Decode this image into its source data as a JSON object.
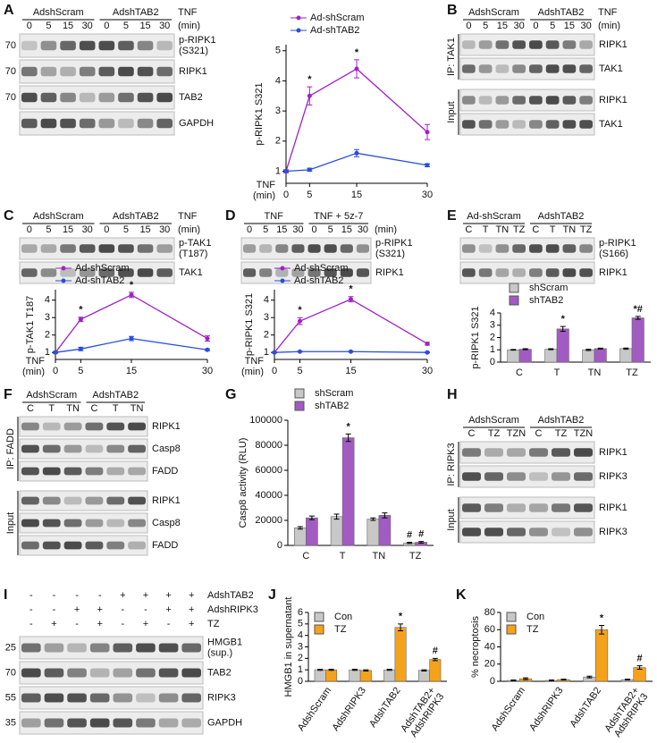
{
  "panel_labels": [
    "A",
    "B",
    "C",
    "D",
    "E",
    "F",
    "G",
    "H",
    "I",
    "J",
    "K"
  ],
  "blots": [
    {
      "groups": [
        {
          "name": "AdshScram",
          "lanes": [
            "0",
            "5",
            "15",
            "30"
          ]
        },
        {
          "name": "AdshTAB2",
          "lanes": [
            "0",
            "5",
            "15",
            "30"
          ]
        }
      ],
      "condition": [
        "TNF",
        "(min)"
      ],
      "sections": [
        {
          "rows": [
            {
              "mw": "70",
              "label": [
                "p-RIPK1",
                "(S321)"
              ]
            },
            {
              "mw": "70",
              "label": "RIPK1"
            },
            {
              "mw": "70",
              "label": "TAB2"
            },
            {
              "label": "GAPDH"
            }
          ]
        }
      ]
    },
    {
      "groups": [
        {
          "name": "AdshScram",
          "lanes": [
            "0",
            "5",
            "15",
            "30"
          ]
        },
        {
          "name": "AdshTAB2",
          "lanes": [
            "0",
            "5",
            "15",
            "30"
          ]
        }
      ],
      "condition": [
        "TNF",
        "(min)"
      ],
      "sections": [
        {
          "label": "IP: TAK1",
          "rows": [
            {
              "label": "RIPK1"
            },
            {
              "label": "TAK1"
            }
          ]
        },
        {
          "label": "Input",
          "rows": [
            {
              "label": "RIPK1"
            },
            {
              "label": "TAK1"
            }
          ]
        }
      ]
    },
    {
      "groups": [
        {
          "name": "AdshScram",
          "lanes": [
            "0",
            "5",
            "15",
            "30"
          ]
        },
        {
          "name": "AdshTAB2",
          "lanes": [
            "0",
            "5",
            "15",
            "30"
          ]
        }
      ],
      "condition": [
        "TNF",
        "(min)"
      ],
      "sections": [
        {
          "rows": [
            {
              "label": [
                "p-TAK1",
                "(T187)"
              ]
            },
            {
              "label": "TAK1"
            }
          ]
        }
      ]
    },
    {
      "groups": [
        {
          "name": "TNF",
          "lanes": [
            "0",
            "5",
            "15",
            "30"
          ]
        },
        {
          "name": "TNF + 5z-7",
          "lanes": [
            "0",
            "5",
            "15",
            "30"
          ]
        }
      ],
      "condition": [
        "(min)"
      ],
      "sections": [
        {
          "rows": [
            {
              "label": [
                "p-RIPK1",
                "(S321)"
              ]
            },
            {
              "label": "RIPK1"
            }
          ]
        }
      ]
    },
    {
      "groups": [
        {
          "name": "Ad-shScram",
          "lanes": [
            "C",
            "T",
            "TN",
            "TZ"
          ]
        },
        {
          "name": "AdshTAB2",
          "lanes": [
            "C",
            "T",
            "TN",
            "TZ"
          ]
        }
      ],
      "sections": [
        {
          "rows": [
            {
              "label": [
                "p-RIPK1",
                "(S166)"
              ]
            },
            {
              "label": "RIPK1"
            }
          ]
        }
      ]
    },
    {
      "groups": [
        {
          "name": "AdshScram",
          "lanes": [
            "C",
            "T",
            "TN"
          ]
        },
        {
          "name": "AdshTAB2",
          "lanes": [
            "C",
            "T",
            "TN"
          ]
        }
      ],
      "sections": [
        {
          "label": "IP: FADD",
          "rows": [
            {
              "label": "RIPK1"
            },
            {
              "label": "Casp8"
            },
            {
              "label": "FADD"
            }
          ]
        },
        {
          "label": "Input",
          "rows": [
            {
              "label": "RIPK1"
            },
            {
              "label": "Casp8"
            },
            {
              "label": "FADD"
            }
          ]
        }
      ]
    },
    {
      "groups": [
        {
          "name": "AdshScram",
          "lanes": [
            "C",
            "TZ",
            "TZN"
          ]
        },
        {
          "name": "AdshTAB2",
          "lanes": [
            "C",
            "TZ",
            "TZN"
          ]
        }
      ],
      "sections": [
        {
          "label": "IP: RIPK3",
          "rows": [
            {
              "label": "RIPK1"
            },
            {
              "label": "RIPK3"
            }
          ]
        },
        {
          "label": "Input",
          "rows": [
            {
              "label": "RIPK1"
            },
            {
              "label": "RIPK3"
            }
          ]
        }
      ]
    },
    {
      "conditions": [
        {
          "name": "AdshTAB2",
          "lanes": [
            "-",
            "-",
            "-",
            "-",
            "+",
            "+",
            "+",
            "+"
          ]
        },
        {
          "name": "AdshRIPK3",
          "lanes": [
            "-",
            "-",
            "+",
            "+",
            "-",
            "-",
            "+",
            "+"
          ]
        },
        {
          "name": "TZ",
          "lanes": [
            "-",
            "+",
            "-",
            "+",
            "-",
            "+",
            "-",
            "+"
          ]
        }
      ],
      "sections": [
        {
          "rows": [
            {
              "mw": "25",
              "label": [
                "HMGB1",
                "(sup.)"
              ]
            },
            {
              "mw": "70",
              "label": "TAB2"
            },
            {
              "mw": "55",
              "label": "RIPK3"
            },
            {
              "mw": "35",
              "label": "GAPDH"
            }
          ]
        }
      ]
    }
  ],
  "chart_data": [
    {
      "type": "line",
      "xlabel": [
        "TNF",
        "(min)"
      ],
      "ylabel": "p-RIPK1 S321",
      "x": [
        0,
        5,
        15,
        30
      ],
      "xlim": [
        0,
        30
      ],
      "xticks": [
        0,
        5,
        15,
        30
      ],
      "ylim": [
        0.6,
        5.2
      ],
      "yticks": [
        1,
        2,
        3,
        4,
        5
      ],
      "series": [
        {
          "name": "Ad-shScram",
          "color": "#a020c8",
          "values": [
            1,
            3.5,
            4.4,
            2.3
          ],
          "errors": [
            0.05,
            0.3,
            0.3,
            0.25
          ],
          "marks": [
            null,
            "*",
            "*",
            null
          ]
        },
        {
          "name": "Ad-shTAB2",
          "color": "#2a4de0",
          "values": [
            1,
            1.05,
            1.6,
            1.2
          ],
          "errors": [
            0.03,
            0.05,
            0.12,
            0.05
          ]
        }
      ]
    },
    {
      "type": "line",
      "xlabel": [
        "TNF",
        "(min)"
      ],
      "ylabel": "p-TAK1 T187",
      "x": [
        0,
        5,
        15,
        30
      ],
      "xlim": [
        0,
        30
      ],
      "xticks": [
        0,
        5,
        15,
        30
      ],
      "ylim": [
        0.6,
        4.6
      ],
      "yticks": [
        1,
        2,
        3,
        4
      ],
      "series": [
        {
          "name": "Ad-shScram",
          "color": "#a020c8",
          "values": [
            1,
            2.9,
            4.3,
            1.8
          ],
          "errors": [
            0.05,
            0.12,
            0.15,
            0.15
          ],
          "marks": [
            null,
            "*",
            "*",
            null
          ]
        },
        {
          "name": "Ad-shTAB2",
          "color": "#2a4de0",
          "values": [
            1,
            1.2,
            1.8,
            1.15
          ],
          "errors": [
            0.05,
            0.1,
            0.12,
            0.05
          ]
        }
      ]
    },
    {
      "type": "line",
      "xlabel": [
        "TNF",
        "(min)"
      ],
      "ylabel": "p-RIPK1 S321",
      "x": [
        0,
        5,
        15,
        30
      ],
      "xlim": [
        0,
        30
      ],
      "xticks": [
        0,
        5,
        15,
        30
      ],
      "ylim": [
        0.6,
        4.6
      ],
      "yticks": [
        1,
        2,
        3,
        4
      ],
      "series": [
        {
          "name": "Ad-shScram",
          "color": "#a020c8",
          "values": [
            1,
            2.8,
            4.05,
            1.5
          ],
          "errors": [
            0.03,
            0.2,
            0.15,
            0.08
          ],
          "marks": [
            null,
            "*",
            "*",
            null
          ]
        },
        {
          "name": "Ad-shTAB2",
          "color": "#2a4de0",
          "values": [
            1,
            1.05,
            1.05,
            1
          ],
          "errors": [
            0.02,
            0.02,
            0.02,
            0.02
          ]
        }
      ]
    },
    {
      "type": "bar",
      "ylabel": "p-RIPK1 S321",
      "categories": [
        "C",
        "T",
        "TN",
        "TZ"
      ],
      "ylim": [
        0,
        4
      ],
      "yticks": [
        0,
        1,
        2,
        3,
        4
      ],
      "series": [
        {
          "name": "shScram",
          "color": "#c8c8c8",
          "values": [
            1,
            1.05,
            1,
            1.1
          ],
          "errors": [
            0.03,
            0.04,
            0.05,
            0.05
          ]
        },
        {
          "name": "shTAB2",
          "color": "#a35bc4",
          "values": [
            1.05,
            2.7,
            1.1,
            3.6
          ],
          "errors": [
            0.04,
            0.2,
            0.04,
            0.12
          ],
          "marks": [
            null,
            "*",
            null,
            "*#"
          ]
        }
      ]
    },
    {
      "type": "bar",
      "ylabel": "Casp8 activity (RLU)",
      "categories": [
        "C",
        "T",
        "TN",
        "TZ"
      ],
      "ylim": [
        0,
        100000
      ],
      "yticks": [
        0,
        20000,
        40000,
        60000,
        80000,
        100000
      ],
      "series": [
        {
          "name": "shScram",
          "color": "#c8c8c8",
          "values": [
            14000,
            23000,
            21000,
            2000
          ],
          "errors": [
            1000,
            2000,
            1000,
            500
          ],
          "marks": [
            null,
            null,
            null,
            "#"
          ]
        },
        {
          "name": "shTAB2",
          "color": "#a35bc4",
          "values": [
            22000,
            86000,
            24000,
            2500
          ],
          "errors": [
            1500,
            3000,
            2000,
            600
          ],
          "marks": [
            null,
            "*",
            null,
            "#"
          ]
        }
      ]
    },
    {
      "type": "bar",
      "ylabel": "HMGB1 in supernatant",
      "categories": [
        "AdshScram",
        "AdshRIPK3",
        "AdshTAB2",
        [
          "AdshTAB2+",
          "AdshRIPK3"
        ]
      ],
      "ylim": [
        0,
        6
      ],
      "yticks": [
        0,
        1,
        2,
        3,
        4,
        5,
        6
      ],
      "series": [
        {
          "name": "Con",
          "color": "#c8c8c8",
          "values": [
            1,
            1,
            1,
            0.95
          ],
          "errors": [
            0.05,
            0.05,
            0.05,
            0.05
          ]
        },
        {
          "name": "TZ",
          "color": "#f5a21b",
          "values": [
            1,
            0.95,
            4.7,
            1.9
          ],
          "errors": [
            0.05,
            0.05,
            0.3,
            0.1
          ],
          "marks": [
            null,
            null,
            "*",
            "#"
          ]
        }
      ]
    },
    {
      "type": "bar",
      "ylabel": "% necroptosis",
      "categories": [
        "AdshScram",
        "AdshRIPK3",
        "AdshTAB2",
        [
          "AdshTAB2+",
          "AdshRIPK3"
        ]
      ],
      "ylim": [
        0,
        80
      ],
      "yticks": [
        0,
        20,
        40,
        60,
        80
      ],
      "series": [
        {
          "name": "Con",
          "color": "#c8c8c8",
          "values": [
            1,
            1,
            5,
            2
          ],
          "errors": [
            0.5,
            0.5,
            1,
            0.5
          ]
        },
        {
          "name": "TZ",
          "color": "#f5a21b",
          "values": [
            3,
            2,
            60,
            16
          ],
          "errors": [
            1,
            0.5,
            5,
            2
          ],
          "marks": [
            null,
            null,
            "*",
            "#"
          ]
        }
      ]
    }
  ]
}
